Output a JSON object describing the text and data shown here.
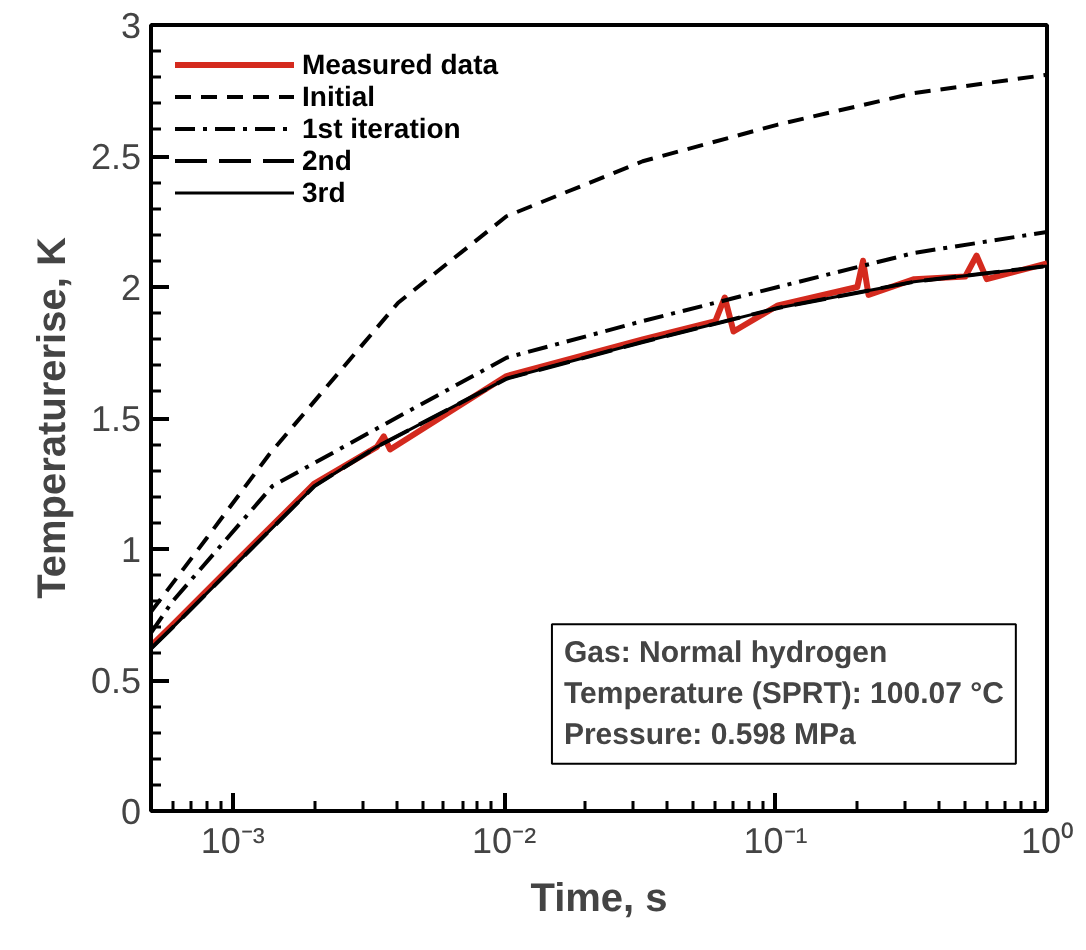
{
  "chart_data": {
    "type": "line",
    "xlabel": "Time, s",
    "ylabel": "Temperaturerise, K",
    "log": "x",
    "xlim": [
      0.0005,
      1
    ],
    "ylim": [
      0,
      3
    ],
    "xticks": [
      {
        "value": 0.001,
        "label": "10⁻³"
      },
      {
        "value": 0.01,
        "label": "10⁻²"
      },
      {
        "value": 0.1,
        "label": "10⁻¹"
      },
      {
        "value": 1,
        "label": "10⁰"
      }
    ],
    "yticks": [
      0,
      0.5,
      1,
      1.5,
      2,
      2.5,
      3
    ],
    "grid": false,
    "legend": "top left",
    "series": [
      {
        "name": "Measured data",
        "color": "#d42a1e",
        "line_style": "solid",
        "x": [
          0.0005,
          0.0006,
          0.001,
          0.002,
          0.0034,
          0.0036,
          0.0038,
          0.0102,
          0.0324,
          0.06,
          0.065,
          0.07,
          0.102,
          0.2,
          0.21,
          0.22,
          0.324,
          0.5,
          0.55,
          0.6,
          1
        ],
        "values": [
          0.63,
          0.71,
          0.94,
          1.25,
          1.39,
          1.43,
          1.38,
          1.66,
          1.8,
          1.87,
          1.96,
          1.83,
          1.93,
          2.0,
          2.1,
          1.97,
          2.03,
          2.04,
          2.12,
          2.03,
          2.09
        ]
      },
      {
        "name": "Initial",
        "color": "#000000",
        "line_style": "dashed",
        "x": [
          0.0005,
          0.0008,
          0.00136,
          0.00407,
          0.0102,
          0.0324,
          0.102,
          0.324,
          1
        ],
        "values": [
          0.76,
          1.04,
          1.36,
          1.94,
          2.27,
          2.48,
          2.62,
          2.74,
          2.81
        ]
      },
      {
        "name": "1st iteration",
        "color": "#000000",
        "line_style": "dashdot",
        "x": [
          0.0005,
          0.0006,
          0.0014,
          0.0034,
          0.0102,
          0.0324,
          0.102,
          0.324,
          1
        ],
        "values": [
          0.68,
          0.8,
          1.24,
          1.46,
          1.73,
          1.87,
          2.0,
          2.13,
          2.21
        ]
      },
      {
        "name": "2nd",
        "color": "#000000",
        "line_style": "longdash",
        "x": [
          0.0005,
          0.0006,
          0.001,
          0.002,
          0.0034,
          0.0102,
          0.0324,
          0.102,
          0.324,
          1
        ],
        "values": [
          0.62,
          0.7,
          0.93,
          1.24,
          1.39,
          1.65,
          1.79,
          1.92,
          2.02,
          2.08
        ]
      },
      {
        "name": "3rd",
        "color": "#000000",
        "line_style": "solid",
        "x": [
          0.0005,
          0.0006,
          0.001,
          0.002,
          0.0034,
          0.0102,
          0.0324,
          0.102,
          0.324,
          1
        ],
        "values": [
          0.62,
          0.7,
          0.93,
          1.24,
          1.39,
          1.65,
          1.79,
          1.92,
          2.02,
          2.08
        ]
      }
    ],
    "annotations": [
      "Gas: Normal hydrogen",
      "Temperature (SPRT): 100.07 °C",
      "Pressure: 0.598 MPa"
    ]
  }
}
